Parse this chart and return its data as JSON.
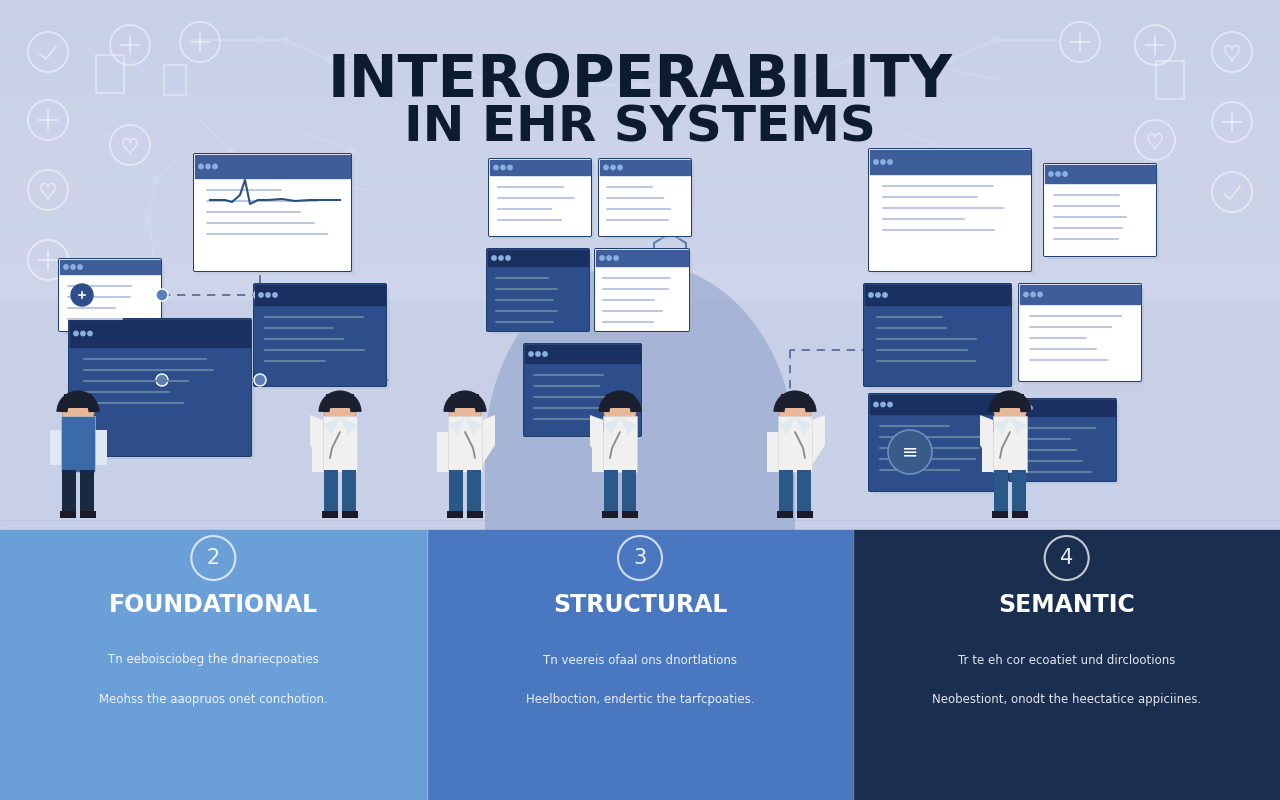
{
  "title_line1": "INTEROPERABILITY",
  "title_line2": "IN EHR SYSTEMS",
  "title_color": "#0d1b2e",
  "title_fontsize1": 42,
  "title_fontsize2": 36,
  "bg_color": "#c8d0e8",
  "panel_colors": [
    "#6a9fd8",
    "#4a78c0",
    "#1a2e50"
  ],
  "panel_labels": [
    "FOUNDATIONAL",
    "STRUCTURAL",
    "SEMANTIC"
  ],
  "panel_numbers": [
    "2",
    "3",
    "4"
  ],
  "panel_desc1": [
    "Tn eeboisciobeg the dnariecpoaties",
    "Tn veereis ofaal ons dnortlations",
    "Tr te eh cor ecoatiet und dirclootions"
  ],
  "panel_desc2": [
    "Meohss the aaopruos onet conchotion.",
    "Heelboction, endertic the tarfcpoaties.",
    "Neobestiont, onodt the heectatice appiciines."
  ],
  "screen_white": "#ffffff",
  "screen_dark_blue": "#2d4e8a",
  "screen_mid_blue": "#3d5e9a",
  "screen_border": "#1a3a6a",
  "arch_color": "#8a9fc8",
  "arch_alpha": 0.55,
  "connector_color": "#4a6a9a",
  "circuit_color": "#d0d8ee",
  "figure_skin": "#e8b898",
  "figure_coat": "#f0f0f0",
  "figure_pants_blue": "#2a5888",
  "figure_pants_dark": "#1a2840",
  "figure_hair_dark": "#1a2030"
}
